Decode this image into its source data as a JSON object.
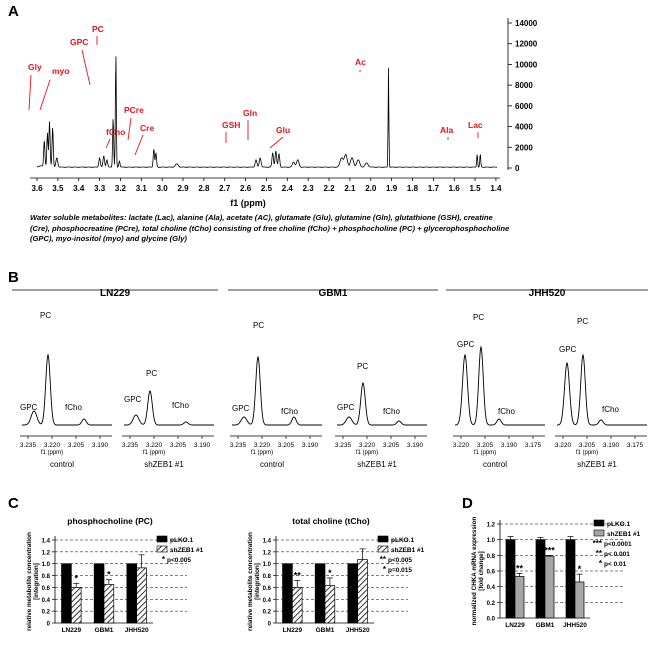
{
  "panels": {
    "A": {
      "letter": "A",
      "x_axis_label": "f1 (ppm)",
      "x_ticks": [
        "3.6",
        "3.5",
        "3.4",
        "3.3",
        "3.2",
        "3.1",
        "3.0",
        "2.9",
        "2.8",
        "2.7",
        "2.6",
        "2.5",
        "2.4",
        "2.3",
        "2.2",
        "2.1",
        "2.0",
        "1.9",
        "1.8",
        "1.7",
        "1.6",
        "1.5",
        "1.4"
      ],
      "y_ticks": [
        "14000",
        "12000",
        "10000",
        "8000",
        "6000",
        "4000",
        "2000",
        "0"
      ],
      "peak_labels": [
        "Gly",
        "myo",
        "GPC",
        "PC",
        "PCre",
        "fCho",
        "Cre",
        "GSH",
        "Gln",
        "Glu",
        "Ac",
        "Ala",
        "Lac"
      ],
      "caption_lead": "Water soluble metabolites:",
      "caption_body": " lactate (Lac), alanine (Ala), acetate (AC), glutamate (Glu), glutamine (Gln), glutathione (GSH), creatine (Cre), phosphocreatine (PCre), total choline (tCho) consisting of free choline (fCho) + phosphocholine (PC) + glycerophosphocholine (GPC), myo-inositol (myo) and glycine (Gly)"
    },
    "B": {
      "letter": "B",
      "cell_lines": [
        "LN229",
        "GBM1",
        "JHH520"
      ],
      "condition_labels": [
        "control",
        "shZEB1 #1"
      ],
      "axis_unit": "f1 (ppm)",
      "peak_labels": {
        "pc": "PC",
        "gpc": "GPC",
        "fcho": "fCho"
      },
      "ticks": {
        "LN229": [
          "3.235",
          "3.220",
          "3.205",
          "3.190"
        ],
        "GBM1": [
          "3.235",
          "3.220",
          "3.205",
          "3.190"
        ],
        "JHH520": [
          "3.220",
          "3.205",
          "3.190",
          "3.175"
        ]
      }
    },
    "C": {
      "letter": "C"
    },
    "D": {
      "letter": "D"
    }
  },
  "chart_data": [
    {
      "type": "bar",
      "title": "phosphocholine (PC)",
      "ylabel_line1": "relative metabolite concentration",
      "ylabel_line2": "[integration]",
      "categories": [
        "LN229",
        "GBM1",
        "JHH520"
      ],
      "ylim": [
        0,
        1.4
      ],
      "y_ticks": [
        "0",
        "0.2",
        "0.4",
        "0.6",
        "0.8",
        "1.0",
        "1.2",
        "1.4"
      ],
      "series": [
        {
          "name": "pLKO.1",
          "values": [
            1.0,
            1.0,
            1.0
          ],
          "errors": [
            0,
            0,
            0
          ],
          "color": "#000000"
        },
        {
          "name": "shZEB1 #1",
          "values": [
            0.6,
            0.65,
            0.93
          ],
          "errors": [
            0.07,
            0.08,
            0.22
          ],
          "pattern": "hatched"
        }
      ],
      "significance": [
        "*",
        "*",
        ""
      ],
      "legend_note_star": "*",
      "legend_note_text": "p<0.005"
    },
    {
      "type": "bar",
      "title": "total choline (tCho)",
      "ylabel_line1": "relative metabolite concentration",
      "ylabel_line2": "[integration]",
      "categories": [
        "LN229",
        "GBM1",
        "JHH520"
      ],
      "ylim": [
        0,
        1.4
      ],
      "y_ticks": [
        "0",
        "0.2",
        "0.4",
        "0.6",
        "0.8",
        "1.0",
        "1.2",
        "1.4"
      ],
      "series": [
        {
          "name": "pLKO.1",
          "values": [
            1.0,
            1.0,
            1.0
          ],
          "errors": [
            0,
            0,
            0
          ],
          "color": "#000000"
        },
        {
          "name": "shZEB1 #1",
          "values": [
            0.6,
            0.63,
            1.07
          ],
          "errors": [
            0.12,
            0.13,
            0.18
          ],
          "pattern": "hatched"
        }
      ],
      "significance": [
        "**",
        "*",
        ""
      ],
      "legend_notes": [
        {
          "star": "**",
          "text": "p<0.005"
        },
        {
          "star": "*",
          "text": "p=0.015"
        }
      ]
    },
    {
      "type": "bar",
      "title": "",
      "ylabel_line1": "normalized CHKA mRNA expression",
      "ylabel_line2": "[fold change]",
      "categories": [
        "LN229",
        "GBM1",
        "JHH520"
      ],
      "ylim": [
        0,
        1.2
      ],
      "y_ticks": [
        "0.0",
        "0.2",
        "0.4",
        "0.6",
        "0.8",
        "1.0",
        "1.2"
      ],
      "series": [
        {
          "name": "pLKO.1",
          "values": [
            1.0,
            1.0,
            1.0
          ],
          "errors": [
            0.04,
            0.03,
            0.04
          ],
          "color": "#000000"
        },
        {
          "name": "shZEB1 #1",
          "values": [
            0.53,
            0.79,
            0.46
          ],
          "errors": [
            0.04,
            0.01,
            0.1
          ],
          "color": "#a6a6a6"
        }
      ],
      "significance": [
        "**",
        "***",
        "*"
      ],
      "legend_notes": [
        {
          "star": "***",
          "text": "p<0.0001"
        },
        {
          "star": "**",
          "text": "p< 0.001"
        },
        {
          "star": "*",
          "text": "p< 0.01"
        }
      ]
    }
  ]
}
